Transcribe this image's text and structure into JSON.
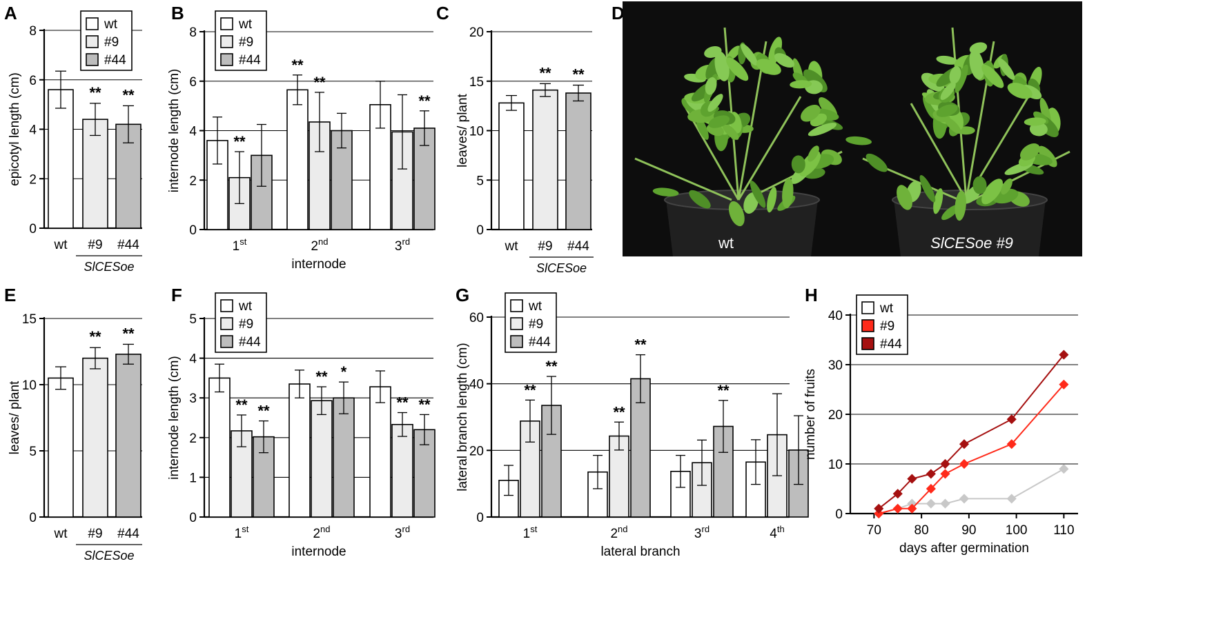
{
  "panel_labels": [
    "A",
    "B",
    "C",
    "D",
    "E",
    "F",
    "G",
    "H"
  ],
  "colors": {
    "wt": "#ffffff",
    "n9": "#ececec",
    "n44": "#bdbdbd",
    "h_wt": "#c8c8c8",
    "h_n9": "#ff2a1a",
    "h_n44": "#a51010",
    "photo_bg": "#0d0d0d",
    "leaf": "#6fb23a",
    "pot": "#202020"
  },
  "legend": {
    "wt": "wt",
    "n9": "#9",
    "n44": "#44"
  },
  "group_label": "SlCESoe",
  "photo": {
    "left_label": "wt",
    "right_label": "SlCESoe #9"
  },
  "chart_data": [
    {
      "panel": "A",
      "type": "bar",
      "ylabel": "epicotyl length (cm)",
      "xlabel": "",
      "ylim": [
        0,
        8
      ],
      "yticks": [
        "0",
        "2",
        "4",
        "6",
        "8"
      ],
      "categories": [
        "wt",
        "#9",
        "#44"
      ],
      "values": [
        5.6,
        4.4,
        4.2
      ],
      "errors": [
        0.75,
        0.65,
        0.75
      ],
      "sig": [
        "",
        "**",
        "**"
      ],
      "grid": true,
      "legend": "top"
    },
    {
      "panel": "B",
      "type": "bar",
      "ylabel": "internode length (cm)",
      "xlabel": "internode",
      "ylim": [
        0,
        8
      ],
      "yticks": [
        "0",
        "2",
        "4",
        "6",
        "8"
      ],
      "groups": [
        {
          "base": "1",
          "sup": "st"
        },
        {
          "base": "2",
          "sup": "nd"
        },
        {
          "base": "3",
          "sup": "rd"
        }
      ],
      "series": [
        {
          "name": "wt",
          "values": [
            3.6,
            5.65,
            5.05
          ],
          "errors": [
            0.95,
            0.6,
            0.95
          ],
          "sig": [
            "",
            "**",
            ""
          ]
        },
        {
          "name": "#9",
          "values": [
            2.1,
            4.35,
            3.95
          ],
          "errors": [
            1.05,
            1.2,
            1.5
          ],
          "sig": [
            "**",
            "**",
            ""
          ]
        },
        {
          "name": "#44",
          "values": [
            3.0,
            4.0,
            4.1
          ],
          "errors": [
            1.25,
            0.7,
            0.7
          ],
          "sig": [
            "",
            "",
            "**"
          ]
        }
      ],
      "grid": true,
      "legend": "top-left"
    },
    {
      "panel": "C",
      "type": "bar",
      "ylabel": "leaves/ plant",
      "xlabel": "",
      "ylim": [
        0,
        20
      ],
      "yticks": [
        "0",
        "5",
        "10",
        "15",
        "20"
      ],
      "categories": [
        "wt",
        "#9",
        "#44"
      ],
      "values": [
        12.8,
        14.1,
        13.8
      ],
      "errors": [
        0.75,
        0.65,
        0.8
      ],
      "sig": [
        "",
        "**",
        "**"
      ],
      "grid": true
    },
    {
      "panel": "E",
      "type": "bar",
      "ylabel": "leaves/ plant",
      "xlabel": "",
      "ylim": [
        0,
        15
      ],
      "yticks": [
        "0",
        "5",
        "10",
        "15"
      ],
      "categories": [
        "wt",
        "#9",
        "#44"
      ],
      "values": [
        10.5,
        12.0,
        12.3
      ],
      "errors": [
        0.85,
        0.8,
        0.75
      ],
      "sig": [
        "",
        "**",
        "**"
      ],
      "grid": true
    },
    {
      "panel": "F",
      "type": "bar",
      "ylabel": "internode length (cm)",
      "xlabel": "internode",
      "ylim": [
        0,
        5
      ],
      "yticks": [
        "0",
        "1",
        "2",
        "3",
        "4",
        "5"
      ],
      "groups": [
        {
          "base": "1",
          "sup": "st"
        },
        {
          "base": "2",
          "sup": "nd"
        },
        {
          "base": "3",
          "sup": "rd"
        }
      ],
      "series": [
        {
          "name": "wt",
          "values": [
            3.5,
            3.35,
            3.28
          ],
          "errors": [
            0.35,
            0.35,
            0.4
          ],
          "sig": [
            "",
            "",
            ""
          ]
        },
        {
          "name": "#9",
          "values": [
            2.17,
            2.93,
            2.33
          ],
          "errors": [
            0.4,
            0.35,
            0.3
          ],
          "sig": [
            "**",
            "**",
            "**"
          ]
        },
        {
          "name": "#44",
          "values": [
            2.02,
            3.0,
            2.2
          ],
          "errors": [
            0.4,
            0.4,
            0.38
          ],
          "sig": [
            "**",
            "*",
            "**"
          ]
        }
      ],
      "grid": true,
      "legend": "top-left"
    },
    {
      "panel": "G",
      "type": "bar",
      "ylabel": "lateral branch length (cm)",
      "xlabel": "lateral branch",
      "ylim": [
        0,
        60
      ],
      "yticks": [
        "0",
        "20",
        "40",
        "60"
      ],
      "groups": [
        {
          "base": "1",
          "sup": "st"
        },
        {
          "base": "2",
          "sup": "nd"
        },
        {
          "base": "3",
          "sup": "rd"
        },
        {
          "base": "4",
          "sup": "th"
        }
      ],
      "series": [
        {
          "name": "wt",
          "values": [
            11,
            13.5,
            13.7,
            16.5
          ],
          "errors": [
            4.5,
            5.0,
            4.8,
            6.7
          ],
          "sig": [
            "",
            "",
            "",
            ""
          ]
        },
        {
          "name": "#9",
          "values": [
            28.8,
            24.3,
            16.3,
            24.7
          ],
          "errors": [
            6.3,
            4.2,
            6.8,
            12.3
          ],
          "sig": [
            "**",
            "**",
            "",
            ""
          ]
        },
        {
          "name": "#44",
          "values": [
            33.5,
            41.5,
            27.2,
            20.1
          ],
          "errors": [
            8.7,
            7.2,
            7.8,
            10.3
          ],
          "sig": [
            "**",
            "**",
            "**",
            ""
          ]
        }
      ],
      "grid": true,
      "legend": "top-left"
    },
    {
      "panel": "H",
      "type": "line",
      "ylabel": "number of fruits",
      "xlabel": "days after germination",
      "xlim": [
        65,
        113
      ],
      "ylim": [
        0,
        40
      ],
      "xticks": [
        "70",
        "80",
        "90",
        "100",
        "110"
      ],
      "yticks": [
        "0",
        "10",
        "20",
        "30",
        "40"
      ],
      "series": [
        {
          "name": "wt",
          "x": [
            71,
            75,
            78,
            82,
            85,
            89,
            99,
            110
          ],
          "y": [
            0,
            1,
            2,
            2,
            2,
            3,
            3,
            9
          ]
        },
        {
          "name": "#9",
          "x": [
            71,
            75,
            78,
            82,
            85,
            89,
            99,
            110
          ],
          "y": [
            0,
            1,
            1,
            5,
            8,
            10,
            14,
            26
          ]
        },
        {
          "name": "#44",
          "x": [
            71,
            75,
            78,
            82,
            85,
            89,
            99,
            110
          ],
          "y": [
            1,
            4,
            7,
            8,
            10,
            14,
            19,
            32
          ]
        }
      ],
      "grid": true,
      "legend": "top-left"
    }
  ]
}
